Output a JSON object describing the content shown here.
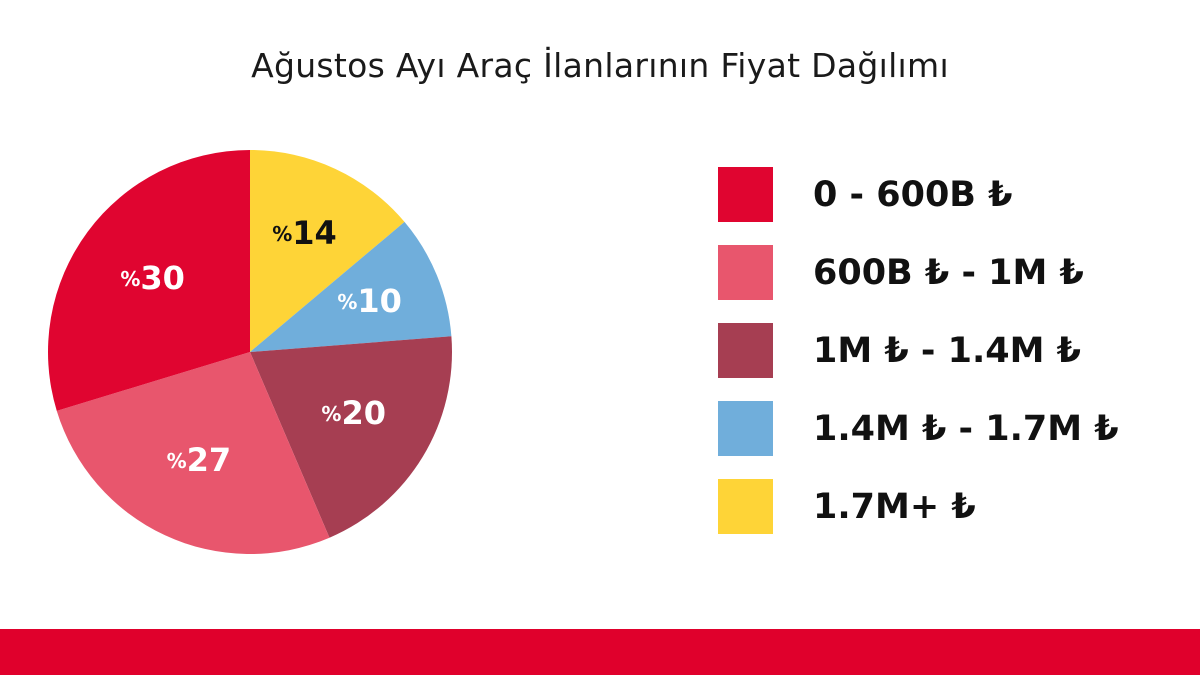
{
  "colors": {
    "bottom_bar": "#e0002c",
    "background": "#ffffff"
  },
  "chart_data": {
    "type": "pie",
    "title": "Ağustos Ayı Araç İlanlarının Fiyat Dağılımı",
    "legend_position": "right",
    "slices": [
      {
        "label": "1.7M+ ₺",
        "value": 14,
        "display": "%14",
        "color": "#fed437",
        "text_color": "#111111"
      },
      {
        "label": "1.4M ₺ - 1.7M ₺",
        "value": 10,
        "display": "%10",
        "color": "#70aedb",
        "text_color": "#ffffff"
      },
      {
        "label": "1M ₺ - 1.4M ₺",
        "value": 20,
        "display": "%20",
        "color": "#a63e52",
        "text_color": "#ffffff"
      },
      {
        "label": "600B ₺ - 1M ₺",
        "value": 27,
        "display": "%27",
        "color": "#e8566d",
        "text_color": "#ffffff"
      },
      {
        "label": "0 - 600B ₺",
        "value": 30,
        "display": "%30",
        "color": "#e00530",
        "text_color": "#ffffff"
      }
    ],
    "legend": [
      {
        "label": "0 - 600B ₺",
        "color": "#e00530"
      },
      {
        "label": "600B ₺ - 1M ₺",
        "color": "#e8566d"
      },
      {
        "label": "1M ₺ - 1.4M ₺",
        "color": "#a63e52"
      },
      {
        "label": "1.4M ₺ - 1.7M ₺",
        "color": "#70aedb"
      },
      {
        "label": "1.7M+ ₺",
        "color": "#fed437"
      }
    ]
  }
}
